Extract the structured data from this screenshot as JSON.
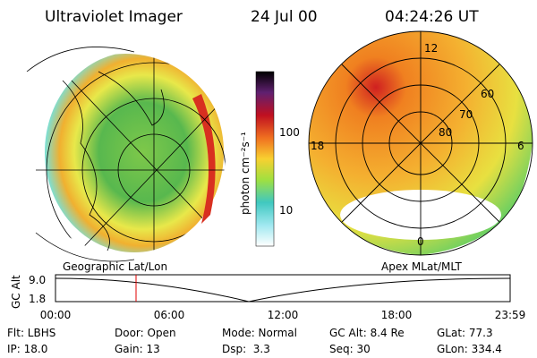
{
  "header": {
    "title": "Ultraviolet Imager",
    "date": "24 Jul 00",
    "time": "04:24:26 UT"
  },
  "colorbar": {
    "label": "photon cm⁻²s⁻¹",
    "ticks": [
      "100",
      "10"
    ]
  },
  "polar_plot": {
    "labels": [
      "12",
      "18",
      "6",
      "0",
      "80",
      "70",
      "60"
    ]
  },
  "image_titles": [
    "Geographic Lat/Lon",
    "Apex MLat/MLT"
  ],
  "timeline": {
    "y_label": "GC Alt",
    "y_ticks": [
      "9.0",
      "1.8"
    ],
    "x_ticks": [
      "00:00",
      "06:00",
      "12:00",
      "18:00",
      "23:59"
    ]
  },
  "status": {
    "rows": [
      [
        "Flt: LBHS",
        "Door: Open",
        "Mode: Normal",
        "GC Alt: 8.4 Re",
        "GLat: 77.3"
      ],
      [
        "IP: 18.0",
        "Gain: 13",
        "Dsp:  3.3",
        "Seq: 30",
        "GLon: 334.4"
      ]
    ]
  }
}
